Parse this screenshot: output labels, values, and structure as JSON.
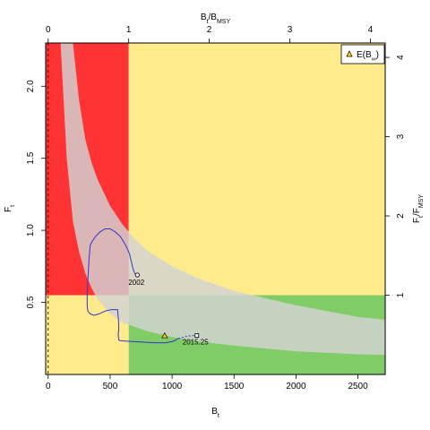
{
  "chart_data": {
    "type": "line",
    "x_axis": {
      "label": "B",
      "label_sub": "t",
      "ticks": [
        0,
        500,
        1000,
        1500,
        2000,
        2500
      ],
      "range": [
        -20,
        2720
      ]
    },
    "y_axis": {
      "label": "F",
      "label_sub": "t",
      "ticks": [
        0.5,
        1.0,
        1.5,
        2.0
      ],
      "tick_labels": [
        "0.5",
        "1.0",
        "1.5",
        "2.0"
      ],
      "range": [
        0.0,
        2.3
      ]
    },
    "top_axis": {
      "label": "B",
      "label_sub": "t",
      "label_tail": "/B",
      "label_tail_sub": "MSY",
      "ticks": [
        0,
        1,
        2,
        3,
        4
      ],
      "bmsy": 650
    },
    "right_axis": {
      "label": "F",
      "label_sub": "t",
      "label_tail": "/F",
      "label_tail_sub": "MSY",
      "ticks": [
        1,
        2,
        3,
        4
      ],
      "fmsy": 0.55
    },
    "zones": {
      "colors": {
        "red": "#ff3333",
        "yellow": "#ffea8c",
        "green": "#80cc66",
        "band": "#d3d3d3",
        "trajectory": "#3333cc"
      },
      "bmsy": 650,
      "fmsy": 0.55
    },
    "uncertainty_band": {
      "x": [
        100,
        150,
        200,
        250,
        300,
        350,
        400,
        500,
        600,
        700,
        800,
        1000,
        1200,
        1500,
        2000,
        2500,
        2720
      ],
      "upper": [
        2.3,
        2.3,
        2.3,
        1.9,
        1.63,
        1.47,
        1.35,
        1.17,
        1.04,
        0.94,
        0.86,
        0.75,
        0.67,
        0.58,
        0.48,
        0.4,
        0.38
      ],
      "lower": [
        2.3,
        1.5,
        1.06,
        0.85,
        0.7,
        0.6,
        0.52,
        0.42,
        0.36,
        0.33,
        0.3,
        0.26,
        0.23,
        0.2,
        0.16,
        0.14,
        0.135
      ]
    },
    "trajectory": {
      "x": [
        715,
        700,
        690,
        680,
        670,
        655,
        635,
        610,
        580,
        540,
        500,
        460,
        420,
        385,
        360,
        340,
        330,
        320,
        315,
        315,
        320,
        340,
        370,
        410,
        460,
        510,
        560,
        568,
        570,
        565,
        570,
        580,
        650,
        750,
        850,
        950,
        1010,
        1050
      ],
      "y": [
        0.69,
        0.7,
        0.72,
        0.75,
        0.79,
        0.84,
        0.88,
        0.92,
        0.96,
        0.99,
        1.01,
        1.01,
        0.99,
        0.96,
        0.93,
        0.9,
        0.8,
        0.65,
        0.55,
        0.48,
        0.44,
        0.42,
        0.41,
        0.42,
        0.44,
        0.45,
        0.45,
        0.38,
        0.31,
        0.28,
        0.24,
        0.235,
        0.23,
        0.225,
        0.22,
        0.22,
        0.23,
        0.25
      ]
    },
    "projection": {
      "x": [
        1050,
        1100,
        1150,
        1200
      ],
      "y": [
        0.25,
        0.26,
        0.27,
        0.27
      ]
    },
    "start_point": {
      "x": 720,
      "y": 0.69,
      "label": "2002"
    },
    "end_point": {
      "x": 1200,
      "y": 0.27,
      "label": "2015.25"
    },
    "equilibrium": {
      "x": 940,
      "y": 0.27
    },
    "legend": {
      "label": "E(B",
      "label_sub": "∞",
      "label_tail": ")",
      "position": "top-right"
    }
  }
}
